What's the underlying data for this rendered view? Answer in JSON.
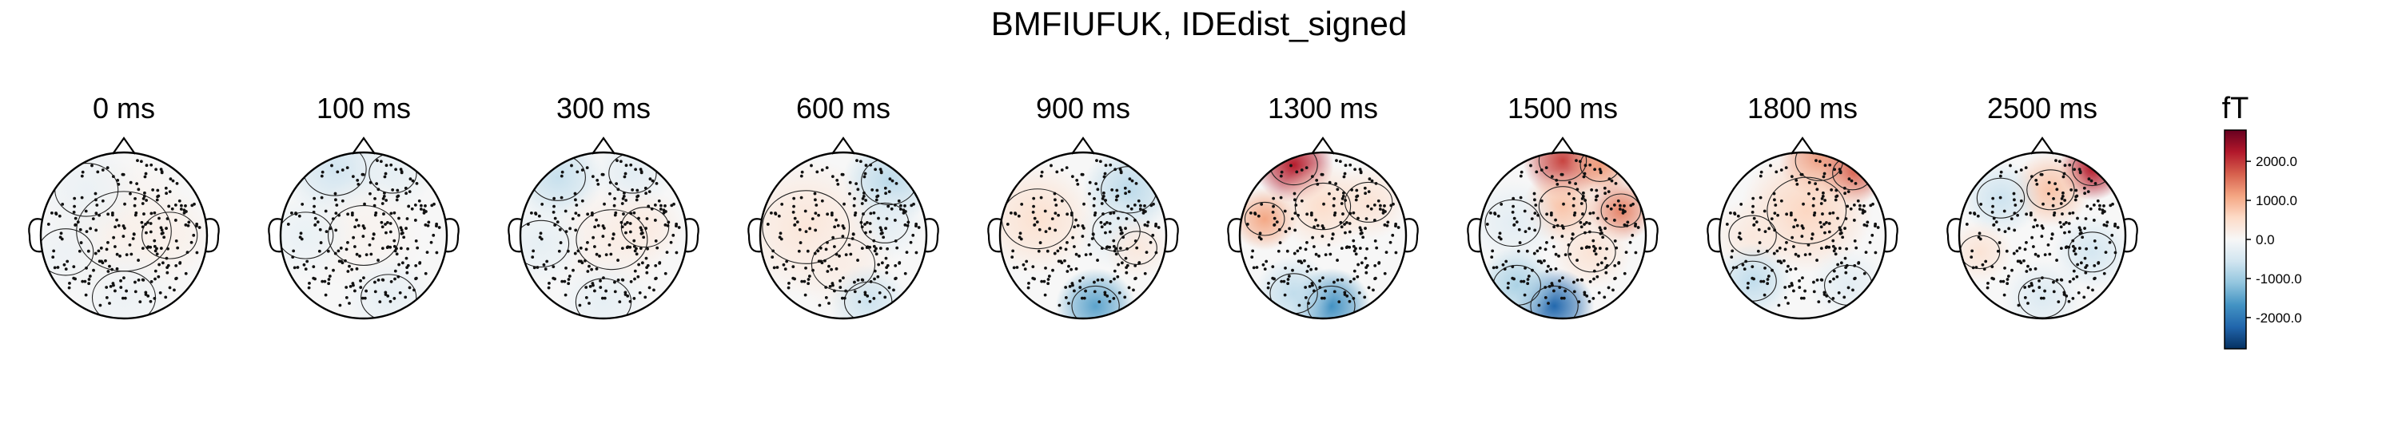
{
  "title": "BMFIUFUK, IDEdist_signed",
  "chart_data": {
    "type": "heatmap",
    "subtype": "topomap",
    "title": "BMFIUFUK, IDEdist_signed",
    "panels": [
      {
        "label": "0 ms",
        "blobs": [
          {
            "u": 0.0,
            "v": 0.05,
            "r": 0.6,
            "a": 150
          },
          {
            "u": -0.45,
            "v": 0.55,
            "r": 0.4,
            "a": -180
          },
          {
            "u": 0.55,
            "v": 0.0,
            "r": 0.35,
            "a": 150
          },
          {
            "u": 0.0,
            "v": -0.75,
            "r": 0.4,
            "a": -150
          },
          {
            "u": -0.7,
            "v": -0.2,
            "r": 0.35,
            "a": -150
          }
        ]
      },
      {
        "label": "100 ms",
        "blobs": [
          {
            "u": -0.35,
            "v": 0.8,
            "r": 0.4,
            "a": -550
          },
          {
            "u": 0.35,
            "v": 0.75,
            "r": 0.3,
            "a": -250
          },
          {
            "u": 0.0,
            "v": 0.0,
            "r": 0.45,
            "a": 100
          },
          {
            "u": 0.3,
            "v": -0.75,
            "r": 0.35,
            "a": -250
          },
          {
            "u": -0.7,
            "v": 0.0,
            "r": 0.35,
            "a": -200
          }
        ]
      },
      {
        "label": "300 ms",
        "blobs": [
          {
            "u": -0.55,
            "v": 0.7,
            "r": 0.35,
            "a": -650
          },
          {
            "u": 0.35,
            "v": 0.75,
            "r": 0.3,
            "a": -300
          },
          {
            "u": 0.1,
            "v": -0.05,
            "r": 0.45,
            "a": 200
          },
          {
            "u": 0.5,
            "v": 0.1,
            "r": 0.3,
            "a": 250
          },
          {
            "u": 0.0,
            "v": -0.8,
            "r": 0.35,
            "a": -250
          },
          {
            "u": -0.75,
            "v": -0.1,
            "r": 0.35,
            "a": -250
          }
        ]
      },
      {
        "label": "600 ms",
        "blobs": [
          {
            "u": 0.55,
            "v": 0.65,
            "r": 0.35,
            "a": -750
          },
          {
            "u": 0.5,
            "v": 0.15,
            "r": 0.3,
            "a": -300
          },
          {
            "u": -0.45,
            "v": 0.1,
            "r": 0.55,
            "a": 350
          },
          {
            "u": 0.0,
            "v": -0.35,
            "r": 0.4,
            "a": 200
          },
          {
            "u": 0.3,
            "v": -0.8,
            "r": 0.3,
            "a": -600
          }
        ]
      },
      {
        "label": "900 ms",
        "blobs": [
          {
            "u": 0.55,
            "v": 0.55,
            "r": 0.35,
            "a": -750
          },
          {
            "u": 0.4,
            "v": 0.05,
            "r": 0.3,
            "a": -300
          },
          {
            "u": -0.55,
            "v": 0.2,
            "r": 0.45,
            "a": 450
          },
          {
            "u": 0.65,
            "v": -0.15,
            "r": 0.25,
            "a": 300
          },
          {
            "u": 0.15,
            "v": -0.85,
            "r": 0.3,
            "a": -1500
          }
        ]
      },
      {
        "label": "1300 ms",
        "blobs": [
          {
            "u": -0.35,
            "v": 0.85,
            "r": 0.3,
            "a": 2200
          },
          {
            "u": -0.7,
            "v": 0.2,
            "r": 0.25,
            "a": 1100
          },
          {
            "u": 0.0,
            "v": 0.35,
            "r": 0.35,
            "a": 500
          },
          {
            "u": 0.55,
            "v": 0.4,
            "r": 0.3,
            "a": 400
          },
          {
            "u": 0.1,
            "v": -0.85,
            "r": 0.3,
            "a": -1700
          },
          {
            "u": -0.35,
            "v": -0.7,
            "r": 0.3,
            "a": -700
          }
        ]
      },
      {
        "label": "1500 ms",
        "blobs": [
          {
            "u": 0.0,
            "v": 0.9,
            "r": 0.3,
            "a": 1900
          },
          {
            "u": 0.45,
            "v": 0.85,
            "r": 0.25,
            "a": 1200
          },
          {
            "u": 0.7,
            "v": 0.3,
            "r": 0.25,
            "a": 1400
          },
          {
            "u": 0.0,
            "v": 0.35,
            "r": 0.3,
            "a": 800
          },
          {
            "u": -0.6,
            "v": 0.15,
            "r": 0.35,
            "a": -300
          },
          {
            "u": 0.35,
            "v": -0.2,
            "r": 0.3,
            "a": 400
          },
          {
            "u": -0.1,
            "v": -0.85,
            "r": 0.3,
            "a": -2200
          },
          {
            "u": -0.55,
            "v": -0.6,
            "r": 0.3,
            "a": -900
          }
        ]
      },
      {
        "label": "1800 ms",
        "blobs": [
          {
            "u": 0.2,
            "v": 0.9,
            "r": 0.3,
            "a": 1300
          },
          {
            "u": 0.6,
            "v": 0.75,
            "r": 0.25,
            "a": 1700
          },
          {
            "u": 0.05,
            "v": 0.3,
            "r": 0.5,
            "a": 600
          },
          {
            "u": -0.6,
            "v": 0.0,
            "r": 0.3,
            "a": 300
          },
          {
            "u": -0.6,
            "v": -0.55,
            "r": 0.3,
            "a": -700
          },
          {
            "u": 0.55,
            "v": -0.6,
            "r": 0.3,
            "a": -300
          }
        ]
      },
      {
        "label": "2500 ms",
        "blobs": [
          {
            "u": 0.6,
            "v": 0.8,
            "r": 0.25,
            "a": 2200
          },
          {
            "u": 0.1,
            "v": 0.55,
            "r": 0.3,
            "a": 800
          },
          {
            "u": -0.5,
            "v": 0.45,
            "r": 0.3,
            "a": -600
          },
          {
            "u": -0.75,
            "v": -0.2,
            "r": 0.25,
            "a": 400
          },
          {
            "u": 0.6,
            "v": -0.2,
            "r": 0.3,
            "a": -500
          },
          {
            "u": 0.0,
            "v": -0.75,
            "r": 0.3,
            "a": -400
          }
        ]
      }
    ],
    "colorbar": {
      "label": "fT",
      "min": -2800,
      "max": 2800,
      "ticks": [
        2000,
        1000,
        0,
        -1000,
        -2000
      ],
      "tick_labels": [
        "2000.0",
        "1000.0",
        "0.0",
        "-1000.0",
        "-2000.0"
      ],
      "colormap": "RdBu_r",
      "colors": [
        "#053061",
        "#2166ac",
        "#4393c3",
        "#92c5de",
        "#d1e5f0",
        "#f7f7f7",
        "#fddbc7",
        "#f4a582",
        "#d6604d",
        "#b2182b",
        "#67001f"
      ]
    },
    "sensors": "dense MEG array shown as black dots",
    "contours": "thin black iso-lines"
  }
}
